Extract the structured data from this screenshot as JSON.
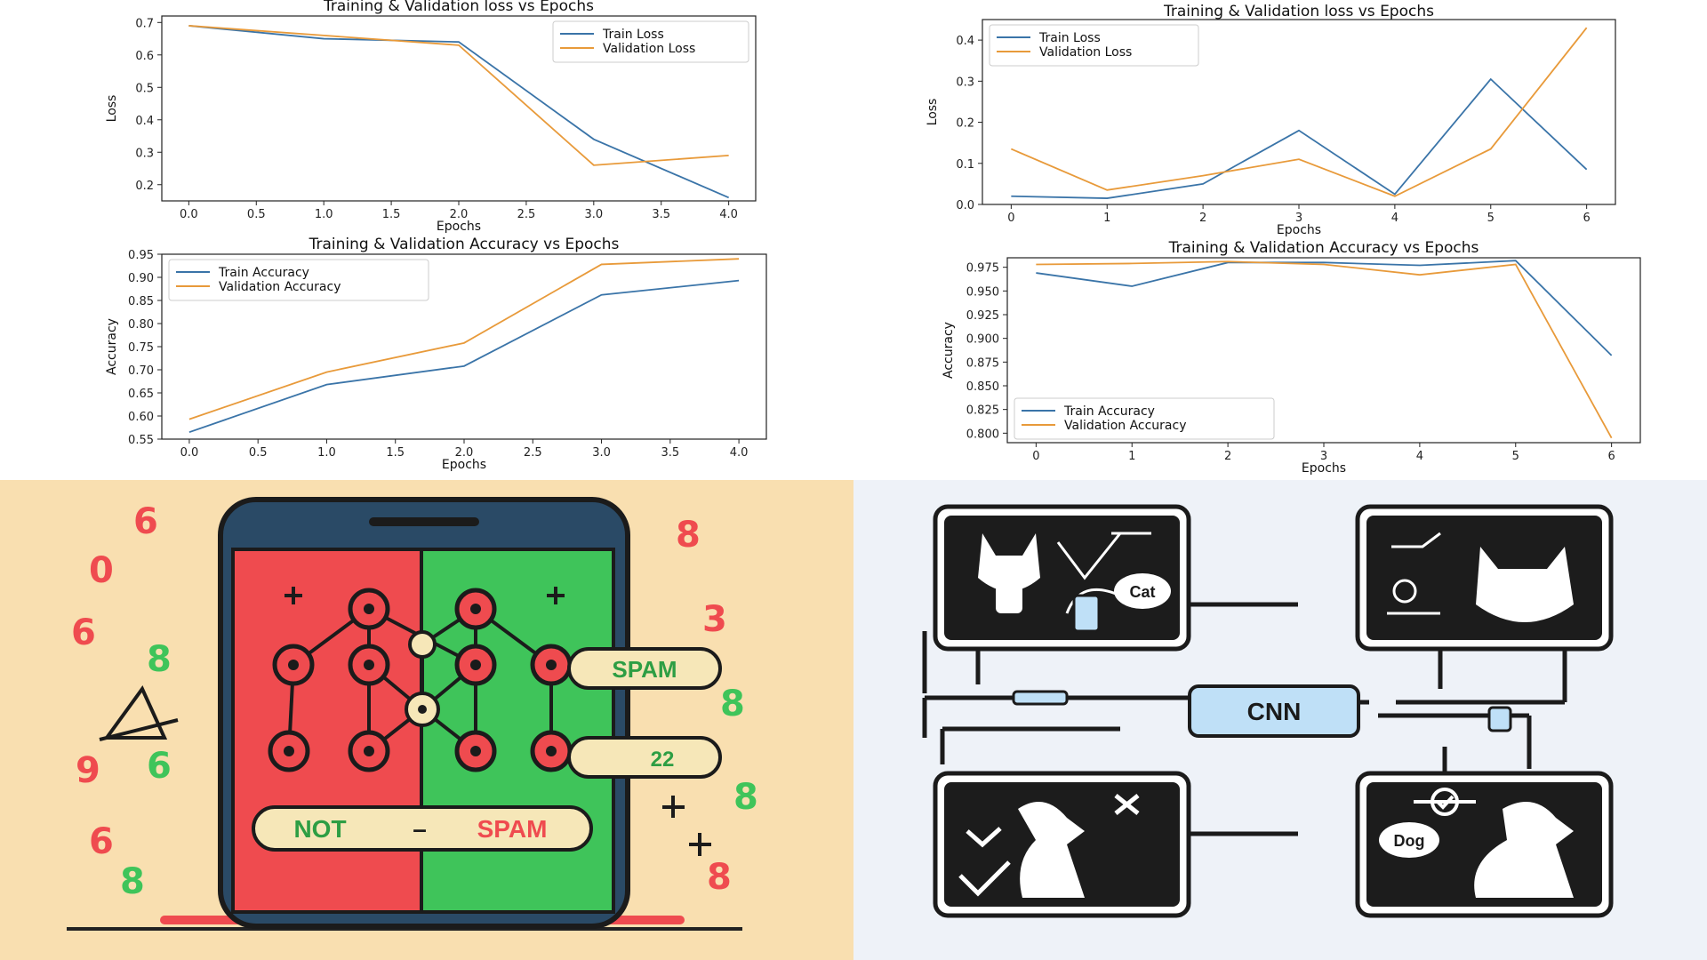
{
  "chart_data": [
    {
      "type": "line",
      "title": "Training & Validation loss vs Epochs",
      "xlabel": "Epochs",
      "ylabel": "Loss",
      "xlim": [
        -0.2,
        4.2
      ],
      "ylim": [
        0.15,
        0.72
      ],
      "xticks": [
        "0.0",
        "0.5",
        "1.0",
        "1.5",
        "2.0",
        "2.5",
        "3.0",
        "3.5",
        "4.0"
      ],
      "yticks": [
        "0.2",
        "0.3",
        "0.4",
        "0.5",
        "0.6",
        "0.7"
      ],
      "x": [
        0,
        1,
        2,
        3,
        4
      ],
      "series": [
        {
          "name": "Train Loss",
          "color": "#3a74a8",
          "values": [
            0.69,
            0.65,
            0.64,
            0.34,
            0.16
          ]
        },
        {
          "name": "Validation Loss",
          "color": "#e89a3a",
          "values": [
            0.69,
            0.66,
            0.63,
            0.26,
            0.29
          ]
        }
      ],
      "legend": "top-right",
      "grid": false
    },
    {
      "type": "line",
      "title": "Training & Validation loss vs Epochs",
      "xlabel": "Epochs",
      "ylabel": "Loss",
      "xlim": [
        -0.3,
        6.3
      ],
      "ylim": [
        0.0,
        0.45
      ],
      "xticks": [
        "0",
        "1",
        "2",
        "3",
        "4",
        "5",
        "6"
      ],
      "yticks": [
        "0.0",
        "0.1",
        "0.2",
        "0.3",
        "0.4"
      ],
      "x": [
        0,
        1,
        2,
        3,
        4,
        5,
        6
      ],
      "series": [
        {
          "name": "Train Loss",
          "color": "#3a74a8",
          "values": [
            0.02,
            0.015,
            0.05,
            0.18,
            0.025,
            0.305,
            0.085
          ]
        },
        {
          "name": "Validation Loss",
          "color": "#e89a3a",
          "values": [
            0.135,
            0.035,
            0.07,
            0.11,
            0.02,
            0.135,
            0.43
          ]
        }
      ],
      "legend": "top-left",
      "grid": false
    },
    {
      "type": "line",
      "title": "Training & Validation Accuracy vs Epochs",
      "xlabel": "Epochs",
      "ylabel": "Accuracy",
      "xlim": [
        -0.2,
        4.2
      ],
      "ylim": [
        0.55,
        0.95
      ],
      "xticks": [
        "0.0",
        "0.5",
        "1.0",
        "1.5",
        "2.0",
        "2.5",
        "3.0",
        "3.5",
        "4.0"
      ],
      "yticks": [
        "0.55",
        "0.60",
        "0.65",
        "0.70",
        "0.75",
        "0.80",
        "0.85",
        "0.90",
        "0.95"
      ],
      "x": [
        0,
        1,
        2,
        3,
        4
      ],
      "series": [
        {
          "name": "Train Accuracy",
          "color": "#3a74a8",
          "values": [
            0.565,
            0.668,
            0.708,
            0.862,
            0.893
          ]
        },
        {
          "name": "Validation Accuracy",
          "color": "#e89a3a",
          "values": [
            0.593,
            0.695,
            0.758,
            0.928,
            0.94
          ]
        }
      ],
      "legend": "top-left",
      "grid": false
    },
    {
      "type": "line",
      "title": "Training & Validation Accuracy vs Epochs",
      "xlabel": "Epochs",
      "ylabel": "Accuracy",
      "xlim": [
        -0.3,
        6.3
      ],
      "ylim": [
        0.79,
        0.985
      ],
      "xticks": [
        "0",
        "1",
        "2",
        "3",
        "4",
        "5",
        "6"
      ],
      "yticks": [
        "0.800",
        "0.825",
        "0.850",
        "0.875",
        "0.900",
        "0.925",
        "0.950",
        "0.975"
      ],
      "x": [
        0,
        1,
        2,
        3,
        4,
        5,
        6
      ],
      "series": [
        {
          "name": "Train Accuracy",
          "color": "#3a74a8",
          "values": [
            0.969,
            0.955,
            0.98,
            0.98,
            0.977,
            0.982,
            0.882
          ]
        },
        {
          "name": "Validation Accuracy",
          "color": "#e89a3a",
          "values": [
            0.978,
            0.979,
            0.981,
            0.978,
            0.967,
            0.978,
            0.795
          ]
        }
      ],
      "legend": "bottom-left",
      "grid": false
    }
  ],
  "illustrations": {
    "spam": {
      "spam_label": "SPAM",
      "number_label": "22",
      "not_label": "NOT",
      "dash_label": "–",
      "spam2_label": "SPAM",
      "colors": {
        "red": "#ef4b4f",
        "green": "#3fc45a",
        "phone": "#2a4a66",
        "background": "#f9dfb0"
      }
    },
    "cnn": {
      "center_label": "CNN",
      "cat_label": "Cat",
      "dog_label": "Dog",
      "colors": {
        "panel": "#1c1c1c",
        "frame": "#ffffff",
        "accent": "#bfe0f7"
      }
    }
  }
}
